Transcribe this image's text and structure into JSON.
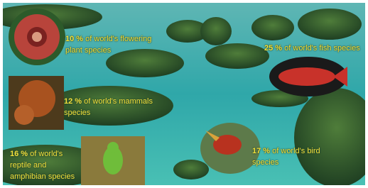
{
  "items": [
    {
      "percent": "10 %",
      "text": "of world's flowering plant species"
    },
    {
      "percent": "25 %",
      "text": "of world's fish species"
    },
    {
      "percent": "12 %",
      "text": "of world's mammals species"
    },
    {
      "percent": "16 %",
      "text": "of world's reptile and amphibian species"
    },
    {
      "percent": "17 %",
      "text": "of world's bird species"
    }
  ]
}
